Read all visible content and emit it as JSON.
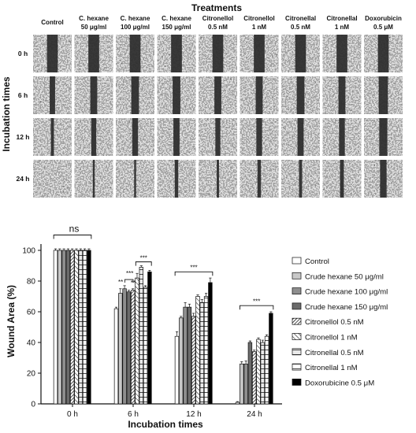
{
  "figure": {
    "panel_a": {
      "title": "Treatments",
      "row_axis_label": "Incubation times",
      "columns": [
        "Control",
        "C. hexane|50 μg/ml",
        "C. hexane|100 μg/ml",
        "C. hexane|150 μg/ml",
        "Citronellol|0.5 nM",
        "Citronellol|1 nM",
        "Citronellal|0.5 nM",
        "Citronellal|1 nM",
        "Doxorubicin|0.5 μM"
      ],
      "rows": [
        "0 h",
        "6 h",
        "12 h",
        "24 h"
      ],
      "gap_fraction": [
        [
          0.28,
          0.28,
          0.28,
          0.28,
          0.28,
          0.28,
          0.28,
          0.28,
          0.28
        ],
        [
          0.14,
          0.18,
          0.2,
          0.2,
          0.18,
          0.18,
          0.2,
          0.18,
          0.24
        ],
        [
          0.08,
          0.13,
          0.15,
          0.16,
          0.13,
          0.15,
          0.16,
          0.15,
          0.21
        ],
        [
          0.0,
          0.05,
          0.05,
          0.09,
          0.06,
          0.09,
          0.08,
          0.1,
          0.17
        ]
      ]
    }
  },
  "chart_data": {
    "type": "bar",
    "title": "",
    "xlabel": "Incubation times",
    "ylabel": "Wound Area (%)",
    "categories": [
      "0 h",
      "6 h",
      "12 h",
      "24 h"
    ],
    "ylim": [
      0,
      100
    ],
    "yticks": [
      "0",
      "20",
      "40",
      "60",
      "80",
      "100"
    ],
    "grid": false,
    "legend_position": "right",
    "series": [
      {
        "name": "Control",
        "pattern": "white",
        "values": [
          100,
          62,
          44,
          1
        ],
        "errors": [
          1,
          1,
          3,
          0.5
        ]
      },
      {
        "name": "Crude hexane 50 μg/ml",
        "pattern": "lightgray",
        "values": [
          100,
          72,
          56,
          26
        ],
        "errors": [
          1,
          3,
          1,
          1.5
        ]
      },
      {
        "name": "Crude hexane 100 μg/ml",
        "pattern": "gray",
        "values": [
          100,
          75,
          63,
          26
        ],
        "errors": [
          1,
          2,
          3,
          2
        ]
      },
      {
        "name": "Crude hexane 150 μg/ml",
        "pattern": "darkgray",
        "values": [
          100,
          73,
          63,
          40
        ],
        "errors": [
          1,
          1,
          2,
          1
        ]
      },
      {
        "name": "Citronellol 0.5 nM",
        "pattern": "dense-hatch",
        "values": [
          100,
          74,
          57,
          34
        ],
        "errors": [
          1,
          1,
          2,
          1
        ]
      },
      {
        "name": "Citronellol 1 nM",
        "pattern": "sparse-hatch",
        "values": [
          100,
          82,
          70,
          42
        ],
        "errors": [
          1,
          3,
          1,
          1
        ]
      },
      {
        "name": "Citronellal 0.5 nM",
        "pattern": "band-light",
        "values": [
          100,
          89,
          66,
          40
        ],
        "errors": [
          1,
          1,
          2,
          1.5
        ]
      },
      {
        "name": "Citronellal 1 nM",
        "pattern": "band-white",
        "values": [
          100,
          76,
          70,
          44
        ],
        "errors": [
          1,
          1,
          2,
          1
        ]
      },
      {
        "name": "Doxorubicine 0.5 μM",
        "pattern": "black",
        "values": [
          100,
          86,
          79,
          59
        ],
        "errors": [
          1,
          1,
          3,
          1
        ]
      }
    ],
    "annotations": {
      "ns": "ns",
      "stars2": "**",
      "stars3": "***"
    }
  }
}
